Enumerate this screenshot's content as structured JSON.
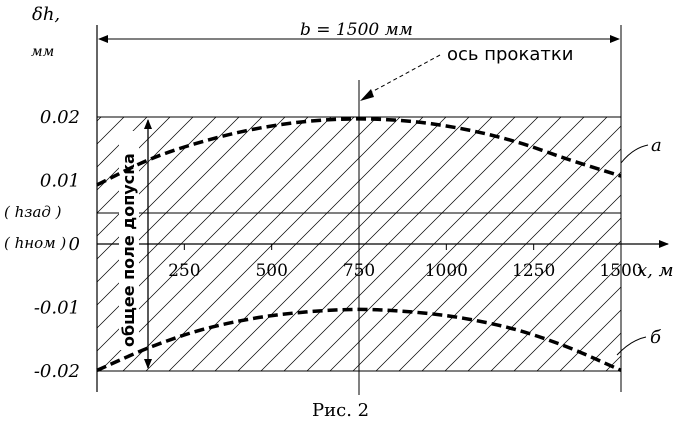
{
  "chart_data": {
    "type": "line",
    "ylabel_top": "δh,",
    "ylabel_unit": "мм",
    "xlabel": "x, м",
    "width_label": "b = 1500 мм",
    "axis_label": "ось прокатки",
    "zone_label": "общее поле допуска",
    "h_zad_label": "( hзад )",
    "h_nom_label": "( hном )",
    "caption": "Рис. 2",
    "xlim": [
      0,
      1500
    ],
    "ylim": [
      -0.02,
      0.02
    ],
    "x_ticks": [
      250,
      500,
      750,
      1000,
      1250
    ],
    "x_tick_labels": [
      "250",
      "500",
      "750",
      "1000",
      "1250",
      "1500"
    ],
    "y_ticks": [
      0.02,
      0.01,
      0,
      -0.01,
      -0.02
    ],
    "y_tick_labels": [
      "0.02",
      "0.01",
      "0",
      "-0.01",
      "-0.02"
    ],
    "h_zad_value": 0.005,
    "tolerance_band": [
      -0.02,
      0.02
    ],
    "rolling_axis_x": 750,
    "series": [
      {
        "name": "а",
        "x": [
          0,
          150,
          300,
          450,
          600,
          750,
          900,
          1050,
          1200,
          1350,
          1500
        ],
        "y": [
          0.0093,
          0.0133,
          0.0161,
          0.0181,
          0.0193,
          0.0197,
          0.0193,
          0.0181,
          0.0161,
          0.0133,
          0.0107
        ]
      },
      {
        "name": "б",
        "x": [
          0,
          150,
          300,
          450,
          600,
          750,
          900,
          1050,
          1200,
          1350,
          1500
        ],
        "y": [
          -0.0199,
          -0.0163,
          -0.0135,
          -0.0117,
          -0.0107,
          -0.0103,
          -0.0107,
          -0.0117,
          -0.0135,
          -0.0163,
          -0.0199
        ]
      }
    ]
  }
}
